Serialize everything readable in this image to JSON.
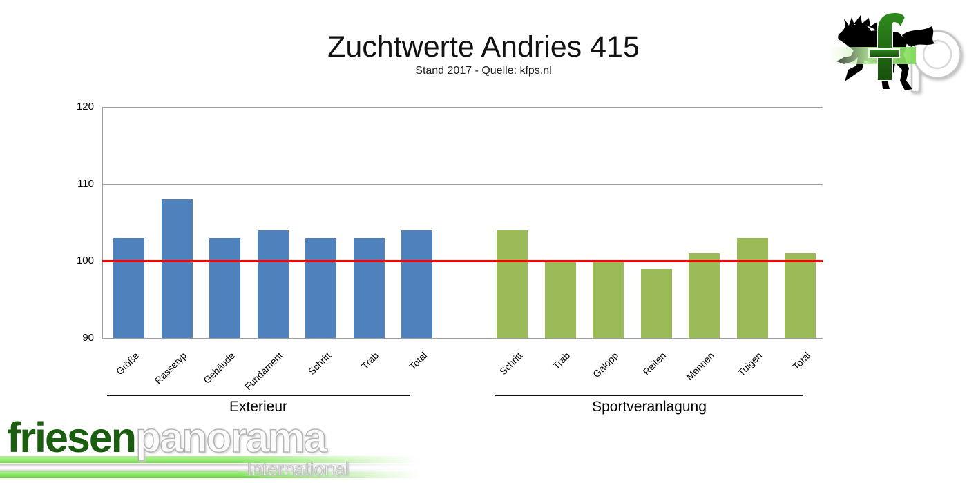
{
  "chart_data": {
    "type": "bar",
    "title": "Zuchtwerte Andries 415",
    "subtitle": "Stand 2017 - Quelle: kfps.nl",
    "ylim": [
      90,
      120
    ],
    "yticks": [
      90,
      100,
      110,
      120
    ],
    "grid": true,
    "legend": false,
    "reference_line": {
      "value": 100,
      "color": "#ff0000"
    },
    "groups": [
      {
        "label": "Exterieur",
        "color": "#4F81BD",
        "categories": [
          "Größe",
          "Rassetyp",
          "Gebäude",
          "Fundament",
          "Schritt",
          "Trab",
          "Total"
        ],
        "values": [
          103,
          108,
          103,
          104,
          103,
          103,
          104
        ]
      },
      {
        "label": "Sportveranlagung",
        "color": "#9BBB59",
        "categories": [
          "Schritt",
          "Trab",
          "Galopp",
          "Reiten",
          "Mennen",
          "Tuigen",
          "Total"
        ],
        "values": [
          104,
          100,
          100,
          99,
          101,
          103,
          101
        ]
      }
    ]
  },
  "branding": {
    "corner_logo": {
      "letters": "fp",
      "f_color": "#1f7a14",
      "accent_green": "#7ddf58"
    },
    "footer_logo": {
      "part1": "friesen",
      "part2": "panorama",
      "subtext": "International",
      "green": "#1b5e10"
    }
  }
}
